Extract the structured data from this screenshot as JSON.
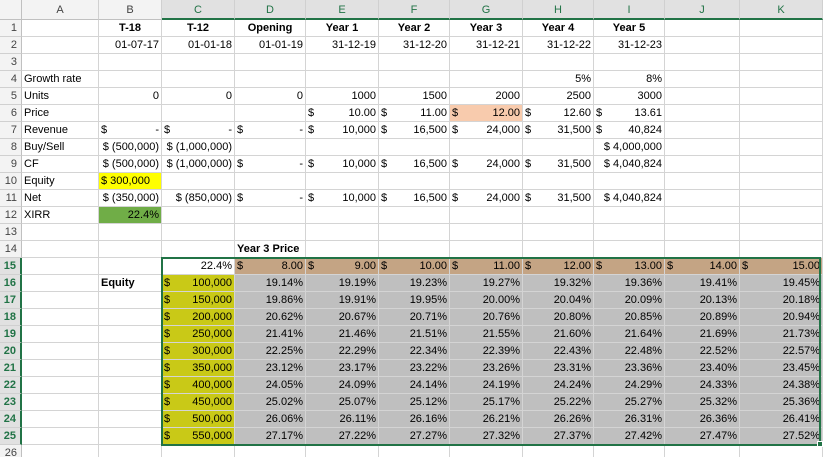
{
  "columns": [
    "A",
    "B",
    "C",
    "D",
    "E",
    "F",
    "G",
    "H",
    "I",
    "J",
    "K"
  ],
  "selected_columns": [
    "C",
    "D",
    "E",
    "F",
    "G",
    "H",
    "I",
    "J",
    "K"
  ],
  "rows": [
    "1",
    "2",
    "3",
    "4",
    "5",
    "6",
    "7",
    "8",
    "9",
    "10",
    "11",
    "12",
    "13",
    "14",
    "15",
    "16",
    "17",
    "18",
    "19",
    "20",
    "21",
    "22",
    "23",
    "24",
    "25",
    "26"
  ],
  "selected_rows": [
    "15",
    "16",
    "17",
    "18",
    "19",
    "20",
    "21",
    "22",
    "23",
    "24",
    "25"
  ],
  "colors": {
    "equity_yellow": "#ffff00",
    "xirr_green": "#70ad47",
    "year3_price_highlight": "#f8cbad",
    "table_header_brown": "#c4a484",
    "equity_col_olive": "#c9c917",
    "table_body_gray": "#bfbfbf",
    "selection_green": "#217346"
  },
  "cells": [
    {
      "ref": "B1",
      "text": "T-18",
      "bold": true,
      "align": "c"
    },
    {
      "ref": "C1",
      "text": "T-12",
      "bold": true,
      "align": "c"
    },
    {
      "ref": "D1",
      "text": "Opening",
      "bold": true,
      "align": "c"
    },
    {
      "ref": "E1",
      "text": "Year 1",
      "bold": true,
      "align": "c"
    },
    {
      "ref": "F1",
      "text": "Year 2",
      "bold": true,
      "align": "c"
    },
    {
      "ref": "G1",
      "text": "Year 3",
      "bold": true,
      "align": "c"
    },
    {
      "ref": "H1",
      "text": "Year 4",
      "bold": true,
      "align": "c"
    },
    {
      "ref": "I1",
      "text": "Year 5",
      "bold": true,
      "align": "c"
    },
    {
      "ref": "B2",
      "text": "01-07-17",
      "align": "r"
    },
    {
      "ref": "C2",
      "text": "01-01-18",
      "align": "r"
    },
    {
      "ref": "D2",
      "text": "01-01-19",
      "align": "r"
    },
    {
      "ref": "E2",
      "text": "31-12-19",
      "align": "r"
    },
    {
      "ref": "F2",
      "text": "31-12-20",
      "align": "r"
    },
    {
      "ref": "G2",
      "text": "31-12-21",
      "align": "r"
    },
    {
      "ref": "H2",
      "text": "31-12-22",
      "align": "r"
    },
    {
      "ref": "I2",
      "text": "31-12-23",
      "align": "r"
    },
    {
      "ref": "A4",
      "text": "Growth rate"
    },
    {
      "ref": "H4",
      "text": "5%",
      "align": "r"
    },
    {
      "ref": "I4",
      "text": "8%",
      "align": "r"
    },
    {
      "ref": "A5",
      "text": "Units"
    },
    {
      "ref": "B5",
      "text": "0",
      "align": "r"
    },
    {
      "ref": "C5",
      "text": "0",
      "align": "r"
    },
    {
      "ref": "D5",
      "text": "0",
      "align": "r"
    },
    {
      "ref": "E5",
      "text": "1000",
      "align": "r"
    },
    {
      "ref": "F5",
      "text": "1500",
      "align": "r"
    },
    {
      "ref": "G5",
      "text": "2000",
      "align": "r"
    },
    {
      "ref": "H5",
      "text": "2500",
      "align": "r"
    },
    {
      "ref": "I5",
      "text": "3000",
      "align": "r"
    },
    {
      "ref": "A6",
      "text": "Price"
    },
    {
      "ref": "E6",
      "cur": "$",
      "text": "10.00",
      "align": "r"
    },
    {
      "ref": "F6",
      "cur": "$",
      "text": "11.00",
      "align": "r"
    },
    {
      "ref": "G6",
      "cur": "$",
      "text": "12.00",
      "align": "r",
      "fill": "year3_price_highlight"
    },
    {
      "ref": "H6",
      "cur": "$",
      "text": "12.60",
      "align": "r"
    },
    {
      "ref": "I6",
      "cur": "$",
      "text": "13.61",
      "align": "r"
    },
    {
      "ref": "A7",
      "text": "Revenue"
    },
    {
      "ref": "B7",
      "cur": "$",
      "text": "-",
      "align": "r"
    },
    {
      "ref": "C7",
      "cur": "$",
      "text": "-",
      "align": "r"
    },
    {
      "ref": "D7",
      "cur": "$",
      "text": "-",
      "align": "r"
    },
    {
      "ref": "E7",
      "cur": "$",
      "text": "10,000",
      "align": "r"
    },
    {
      "ref": "F7",
      "cur": "$",
      "text": "16,500",
      "align": "r"
    },
    {
      "ref": "G7",
      "cur": "$",
      "text": "24,000",
      "align": "r"
    },
    {
      "ref": "H7",
      "cur": "$",
      "text": "31,500",
      "align": "r"
    },
    {
      "ref": "I7",
      "cur": "$",
      "text": "40,824",
      "align": "r"
    },
    {
      "ref": "A8",
      "text": "Buy/Sell"
    },
    {
      "ref": "B8",
      "text": "$ (500,000)",
      "align": "r"
    },
    {
      "ref": "C8",
      "text": "$ (1,000,000)",
      "align": "r"
    },
    {
      "ref": "I8",
      "text": "$ 4,000,000",
      "align": "r"
    },
    {
      "ref": "A9",
      "text": "CF"
    },
    {
      "ref": "B9",
      "text": "$ (500,000)",
      "align": "r"
    },
    {
      "ref": "C9",
      "text": "$ (1,000,000)",
      "align": "r"
    },
    {
      "ref": "D9",
      "cur": "$",
      "text": "-",
      "align": "r"
    },
    {
      "ref": "E9",
      "cur": "$",
      "text": "10,000",
      "align": "r"
    },
    {
      "ref": "F9",
      "cur": "$",
      "text": "16,500",
      "align": "r"
    },
    {
      "ref": "G9",
      "cur": "$",
      "text": "24,000",
      "align": "r"
    },
    {
      "ref": "H9",
      "cur": "$",
      "text": "31,500",
      "align": "r"
    },
    {
      "ref": "I9",
      "text": "$ 4,040,824",
      "align": "r"
    },
    {
      "ref": "A10",
      "text": "Equity"
    },
    {
      "ref": "B10",
      "text": "$ 300,000",
      "fill": "equity_yellow"
    },
    {
      "ref": "A11",
      "text": "Net"
    },
    {
      "ref": "B11",
      "text": "$ (350,000)",
      "align": "r"
    },
    {
      "ref": "C11",
      "text": "$ (850,000)",
      "align": "r"
    },
    {
      "ref": "D11",
      "cur": "$",
      "text": "-",
      "align": "r"
    },
    {
      "ref": "E11",
      "cur": "$",
      "text": "10,000",
      "align": "r"
    },
    {
      "ref": "F11",
      "cur": "$",
      "text": "16,500",
      "align": "r"
    },
    {
      "ref": "G11",
      "cur": "$",
      "text": "24,000",
      "align": "r"
    },
    {
      "ref": "H11",
      "cur": "$",
      "text": "31,500",
      "align": "r"
    },
    {
      "ref": "I11",
      "text": "$ 4,040,824",
      "align": "r"
    },
    {
      "ref": "A12",
      "text": "XIRR"
    },
    {
      "ref": "B12",
      "text": "22.4%",
      "align": "r",
      "fill": "xirr_green"
    },
    {
      "ref": "D14",
      "text": "Year 3 Price",
      "bold": true
    },
    {
      "ref": "B16",
      "text": "Equity",
      "bold": true
    }
  ],
  "sensitivity_table": {
    "corner_value": "22.4%",
    "price_headers": [
      "8.00",
      "9.00",
      "10.00",
      "11.00",
      "12.00",
      "13.00",
      "14.00",
      "15.00"
    ],
    "equity_values": [
      "100,000",
      "150,000",
      "200,000",
      "250,000",
      "300,000",
      "350,000",
      "400,000",
      "450,000",
      "500,000",
      "550,000"
    ],
    "results": [
      [
        "19.14%",
        "19.19%",
        "19.23%",
        "19.27%",
        "19.32%",
        "19.36%",
        "19.41%",
        "19.45%"
      ],
      [
        "19.86%",
        "19.91%",
        "19.95%",
        "20.00%",
        "20.04%",
        "20.09%",
        "20.13%",
        "20.18%"
      ],
      [
        "20.62%",
        "20.67%",
        "20.71%",
        "20.76%",
        "20.80%",
        "20.85%",
        "20.89%",
        "20.94%"
      ],
      [
        "21.41%",
        "21.46%",
        "21.51%",
        "21.55%",
        "21.60%",
        "21.64%",
        "21.69%",
        "21.73%"
      ],
      [
        "22.25%",
        "22.29%",
        "22.34%",
        "22.39%",
        "22.43%",
        "22.48%",
        "22.52%",
        "22.57%"
      ],
      [
        "23.12%",
        "23.17%",
        "23.22%",
        "23.26%",
        "23.31%",
        "23.36%",
        "23.40%",
        "23.45%"
      ],
      [
        "24.05%",
        "24.09%",
        "24.14%",
        "24.19%",
        "24.24%",
        "24.29%",
        "24.33%",
        "24.38%"
      ],
      [
        "25.02%",
        "25.07%",
        "25.12%",
        "25.17%",
        "25.22%",
        "25.27%",
        "25.32%",
        "25.36%"
      ],
      [
        "26.06%",
        "26.11%",
        "26.16%",
        "26.21%",
        "26.26%",
        "26.31%",
        "26.36%",
        "26.41%"
      ],
      [
        "27.17%",
        "27.22%",
        "27.27%",
        "27.32%",
        "27.37%",
        "27.42%",
        "27.47%",
        "27.52%"
      ]
    ]
  }
}
